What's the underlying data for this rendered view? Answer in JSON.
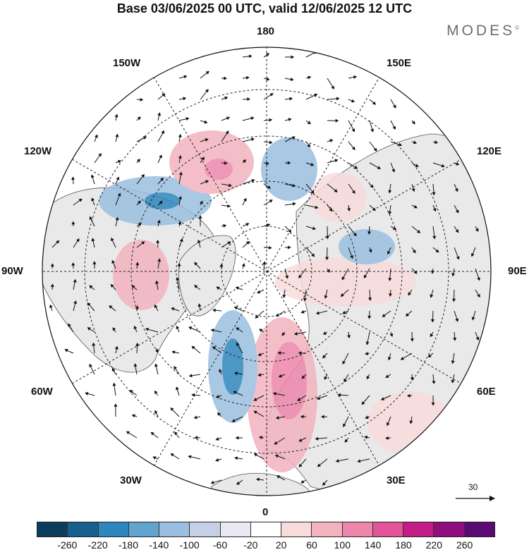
{
  "title": "Base 03/06/2025 00 UTC, valid 12/06/2025 12 UTC",
  "brand": {
    "text": "MODES",
    "mark": "©"
  },
  "longitude_labels": [
    "180",
    "150E",
    "120E",
    "90E",
    "60E",
    "30E",
    "0",
    "30W",
    "60W",
    "90W",
    "120W",
    "150W"
  ],
  "wind_scale": {
    "label": "30"
  },
  "colorbar": {
    "ticks": [
      "-260",
      "-220",
      "-180",
      "-140",
      "-100",
      "-60",
      "-20",
      "20",
      "60",
      "100",
      "140",
      "180",
      "220",
      "260"
    ],
    "colors": [
      "#0b3d5c",
      "#175f8e",
      "#2d86bd",
      "#63a3cf",
      "#9bbfe0",
      "#c5cfe6",
      "#e9e9f4",
      "#ffffff",
      "#f8dcdc",
      "#f2b3bf",
      "#ec86aa",
      "#e15498",
      "#c21d86",
      "#8f0d7d",
      "#5a0a72"
    ]
  },
  "map": {
    "projection": "north-polar-stereographic",
    "land_fill": "#e9e9e9",
    "ocean_fill": "#ffffff",
    "anomaly_blobs": [
      {
        "level": 60,
        "color": "#f8dcdc"
      },
      {
        "level": 100,
        "color": "#f2b3bf"
      },
      {
        "level": 140,
        "color": "#ec86aa"
      },
      {
        "level": -60,
        "color": "#c5cfe6"
      },
      {
        "level": -100,
        "color": "#9bbfe0"
      },
      {
        "level": -140,
        "color": "#63a3cf"
      },
      {
        "level": -180,
        "color": "#2d86bd"
      }
    ]
  }
}
